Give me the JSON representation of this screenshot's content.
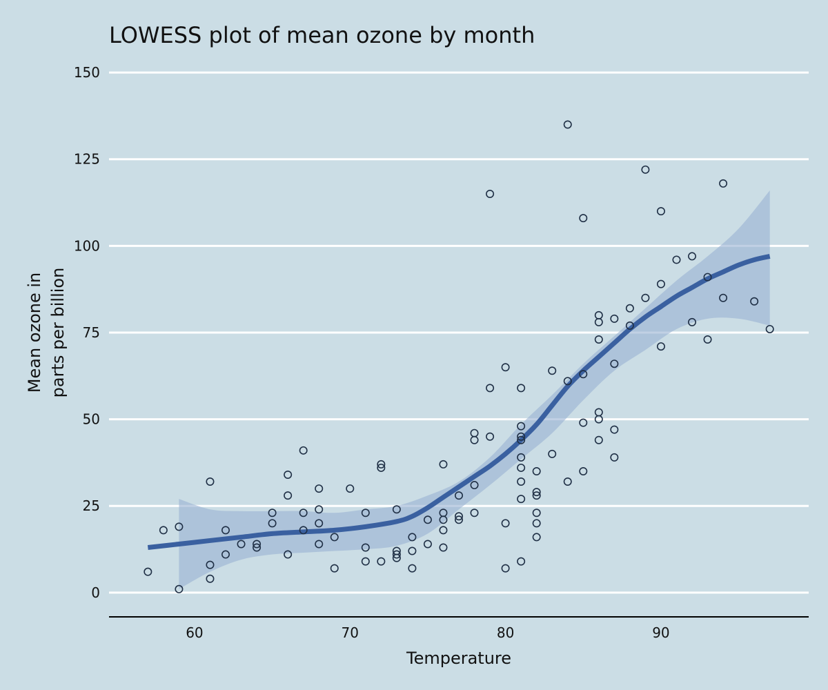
{
  "chart_data": {
    "type": "scatter",
    "title": "LOWESS plot of mean ozone by month",
    "xlabel": "Temperature",
    "ylabel": [
      "Mean ozone in",
      "parts per billion"
    ],
    "xlim": [
      54.5,
      99.5
    ],
    "ylim": [
      -7,
      155
    ],
    "x_ticks": [
      60,
      70,
      80,
      90
    ],
    "y_ticks": [
      0,
      25,
      50,
      75,
      100,
      125,
      150
    ],
    "grid": "horizontal",
    "colors": {
      "background": "#cbdde5",
      "points": "#1f2f45",
      "smooth_line": "#3a60a0",
      "confidence_band": "#9bb3d4",
      "grid": "#ffffff"
    },
    "points": [
      [
        57,
        6
      ],
      [
        58,
        18
      ],
      [
        59,
        19
      ],
      [
        59,
        1
      ],
      [
        61,
        32
      ],
      [
        61,
        8
      ],
      [
        61,
        4
      ],
      [
        62,
        18
      ],
      [
        62,
        11
      ],
      [
        63,
        14
      ],
      [
        64,
        14
      ],
      [
        64,
        13
      ],
      [
        65,
        23
      ],
      [
        65,
        20
      ],
      [
        66,
        34
      ],
      [
        66,
        28
      ],
      [
        66,
        11
      ],
      [
        67,
        41
      ],
      [
        67,
        23
      ],
      [
        67,
        18
      ],
      [
        68,
        30
      ],
      [
        68,
        24
      ],
      [
        68,
        20
      ],
      [
        68,
        14
      ],
      [
        69,
        16
      ],
      [
        69,
        7
      ],
      [
        70,
        30
      ],
      [
        71,
        23
      ],
      [
        71,
        13
      ],
      [
        71,
        9
      ],
      [
        72,
        37
      ],
      [
        72,
        36
      ],
      [
        72,
        9
      ],
      [
        73,
        24
      ],
      [
        73,
        12
      ],
      [
        73,
        11
      ],
      [
        73,
        10
      ],
      [
        74,
        16
      ],
      [
        74,
        12
      ],
      [
        74,
        7
      ],
      [
        75,
        21
      ],
      [
        75,
        14
      ],
      [
        76,
        37
      ],
      [
        76,
        23
      ],
      [
        76,
        21
      ],
      [
        76,
        18
      ],
      [
        76,
        13
      ],
      [
        77,
        28
      ],
      [
        77,
        22
      ],
      [
        77,
        21
      ],
      [
        78,
        46
      ],
      [
        78,
        44
      ],
      [
        78,
        31
      ],
      [
        78,
        23
      ],
      [
        79,
        115
      ],
      [
        79,
        59
      ],
      [
        79,
        45
      ],
      [
        80,
        65
      ],
      [
        80,
        20
      ],
      [
        80,
        7
      ],
      [
        81,
        59
      ],
      [
        81,
        48
      ],
      [
        81,
        45
      ],
      [
        81,
        44
      ],
      [
        81,
        39
      ],
      [
        81,
        36
      ],
      [
        81,
        32
      ],
      [
        81,
        27
      ],
      [
        81,
        9
      ],
      [
        82,
        35
      ],
      [
        82,
        29
      ],
      [
        82,
        28
      ],
      [
        82,
        23
      ],
      [
        82,
        20
      ],
      [
        82,
        16
      ],
      [
        83,
        64
      ],
      [
        83,
        40
      ],
      [
        84,
        135
      ],
      [
        84,
        61
      ],
      [
        84,
        32
      ],
      [
        85,
        108
      ],
      [
        85,
        63
      ],
      [
        85,
        49
      ],
      [
        85,
        35
      ],
      [
        86,
        80
      ],
      [
        86,
        78
      ],
      [
        86,
        73
      ],
      [
        86,
        52
      ],
      [
        86,
        50
      ],
      [
        86,
        44
      ],
      [
        87,
        79
      ],
      [
        87,
        66
      ],
      [
        87,
        47
      ],
      [
        87,
        39
      ],
      [
        88,
        82
      ],
      [
        88,
        77
      ],
      [
        89,
        122
      ],
      [
        89,
        85
      ],
      [
        90,
        110
      ],
      [
        90,
        89
      ],
      [
        90,
        71
      ],
      [
        91,
        96
      ],
      [
        92,
        97
      ],
      [
        92,
        78
      ],
      [
        93,
        91
      ],
      [
        93,
        73
      ],
      [
        94,
        118
      ],
      [
        94,
        85
      ],
      [
        96,
        84
      ],
      [
        97,
        76
      ]
    ],
    "smooth": [
      [
        57,
        13
      ],
      [
        59,
        14
      ],
      [
        61,
        15
      ],
      [
        63,
        16
      ],
      [
        65,
        17
      ],
      [
        67,
        17.5
      ],
      [
        69,
        18
      ],
      [
        71,
        19
      ],
      [
        73,
        20.5
      ],
      [
        74,
        22
      ],
      [
        75,
        24.5
      ],
      [
        76,
        27.5
      ],
      [
        77,
        30.5
      ],
      [
        78,
        33.5
      ],
      [
        79,
        36.5
      ],
      [
        80,
        40
      ],
      [
        81,
        44
      ],
      [
        82,
        48.5
      ],
      [
        83,
        54
      ],
      [
        84,
        59.5
      ],
      [
        85,
        64
      ],
      [
        86,
        68
      ],
      [
        87,
        72
      ],
      [
        88,
        76
      ],
      [
        89,
        79.5
      ],
      [
        90,
        82.5
      ],
      [
        91,
        85.5
      ],
      [
        92,
        88
      ],
      [
        93,
        90.5
      ],
      [
        94,
        92.5
      ],
      [
        95,
        94.5
      ],
      [
        96,
        96
      ],
      [
        97,
        97
      ]
    ],
    "band_upper": [
      [
        59,
        27
      ],
      [
        61,
        24
      ],
      [
        63,
        23.5
      ],
      [
        65,
        23.5
      ],
      [
        67,
        23.5
      ],
      [
        69,
        23
      ],
      [
        71,
        24
      ],
      [
        73,
        25
      ],
      [
        75,
        28
      ],
      [
        77,
        32
      ],
      [
        79,
        39
      ],
      [
        81,
        48.5
      ],
      [
        83,
        57
      ],
      [
        85,
        66
      ],
      [
        87,
        74
      ],
      [
        89,
        82
      ],
      [
        91,
        90
      ],
      [
        93,
        97
      ],
      [
        95,
        105
      ],
      [
        97,
        116
      ]
    ],
    "band_lower": [
      [
        59,
        1
      ],
      [
        61,
        6
      ],
      [
        63,
        9.5
      ],
      [
        65,
        11
      ],
      [
        67,
        11.5
      ],
      [
        69,
        12
      ],
      [
        71,
        12.5
      ],
      [
        73,
        13.5
      ],
      [
        75,
        17
      ],
      [
        77,
        24
      ],
      [
        79,
        31
      ],
      [
        81,
        38.5
      ],
      [
        83,
        46
      ],
      [
        85,
        55.5
      ],
      [
        87,
        64
      ],
      [
        89,
        70
      ],
      [
        91,
        76
      ],
      [
        93,
        79
      ],
      [
        95,
        79
      ],
      [
        97,
        77
      ]
    ]
  }
}
